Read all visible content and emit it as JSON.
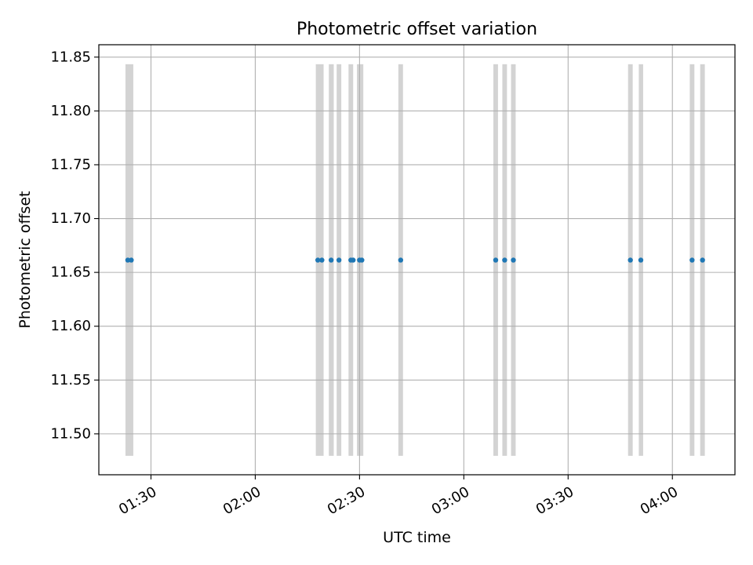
{
  "chart_data": {
    "type": "scatter",
    "title": "Photometric offset variation",
    "xlabel": "UTC time",
    "ylabel": "Photometric offset",
    "x_ticks": [
      "01:30",
      "02:00",
      "02:30",
      "03:00",
      "03:30",
      "04:00"
    ],
    "x_tick_times": [
      "01:30",
      "02:00",
      "02:30",
      "03:00",
      "03:30",
      "04:00"
    ],
    "xlim": [
      "01:15",
      "04:18"
    ],
    "y_ticks": [
      "11.50",
      "11.55",
      "11.60",
      "11.65",
      "11.70",
      "11.75",
      "11.80",
      "11.85"
    ],
    "ylim": [
      11.462,
      11.8615
    ],
    "grid": true,
    "colors": {
      "points": "#1f77b4",
      "spans": "#d3d3d3",
      "grid": "#b0b0b0"
    },
    "span_range": [
      11.4796,
      11.8434
    ],
    "spans": [
      [
        "01:22:40",
        "01:24:55"
      ],
      [
        "02:17:25",
        "02:19:40"
      ],
      [
        "02:21:10",
        "02:22:35"
      ],
      [
        "02:23:25",
        "02:24:45"
      ],
      [
        "02:26:50",
        "02:28:10"
      ],
      [
        "02:29:15",
        "02:31:05"
      ],
      [
        "02:41:10",
        "02:42:30"
      ],
      [
        "03:08:30",
        "03:09:50"
      ],
      [
        "03:11:05",
        "03:12:25"
      ],
      [
        "03:13:35",
        "03:14:55"
      ],
      [
        "03:47:15",
        "03:48:35"
      ],
      [
        "03:50:20",
        "03:51:35"
      ],
      [
        "04:05:00",
        "04:06:20"
      ],
      [
        "04:08:00",
        "04:09:20"
      ]
    ],
    "series": [
      {
        "points": [
          {
            "x": "01:23:20",
            "y": 11.6614
          },
          {
            "x": "01:24:20",
            "y": 11.6614
          },
          {
            "x": "02:18:00",
            "y": 11.6614
          },
          {
            "x": "02:19:10",
            "y": 11.6614
          },
          {
            "x": "02:21:50",
            "y": 11.6614
          },
          {
            "x": "02:24:05",
            "y": 11.6614
          },
          {
            "x": "02:27:30",
            "y": 11.6614
          },
          {
            "x": "02:28:10",
            "y": 11.6614
          },
          {
            "x": "02:30:00",
            "y": 11.6614
          },
          {
            "x": "02:30:40",
            "y": 11.6614
          },
          {
            "x": "02:41:50",
            "y": 11.6614
          },
          {
            "x": "03:09:10",
            "y": 11.6614
          },
          {
            "x": "03:11:45",
            "y": 11.6614
          },
          {
            "x": "03:14:15",
            "y": 11.6614
          },
          {
            "x": "03:47:55",
            "y": 11.6614
          },
          {
            "x": "03:50:55",
            "y": 11.6614
          },
          {
            "x": "04:05:40",
            "y": 11.6614
          },
          {
            "x": "04:08:40",
            "y": 11.6614
          }
        ]
      }
    ]
  }
}
